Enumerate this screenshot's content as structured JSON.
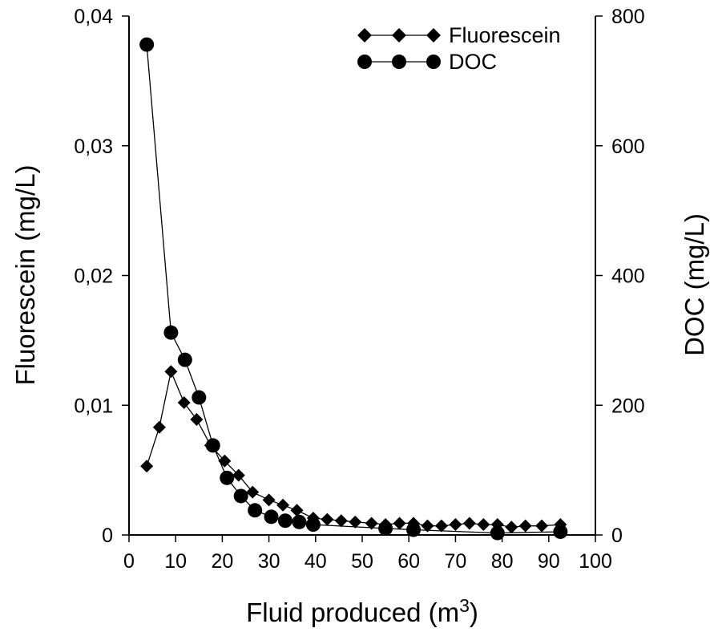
{
  "chart_data": {
    "type": "line",
    "xlabel": "Fluid produced (m",
    "xlabel_sup": "3",
    "xlabel_end": ")",
    "ylabel_left": "Fluorescein (mg/L)",
    "ylabel_right": "DOC (mg/L)",
    "xlim": [
      0,
      100
    ],
    "ylim_left": [
      0,
      0.04
    ],
    "ylim_right": [
      0,
      800
    ],
    "x_ticks": [
      0,
      10,
      20,
      30,
      40,
      50,
      60,
      70,
      80,
      90,
      100
    ],
    "x_tick_labels": [
      "0",
      "10",
      "20",
      "30",
      "40",
      "50",
      "60",
      "70",
      "80",
      "90",
      "100"
    ],
    "y_left_ticks": [
      0,
      0.01,
      0.02,
      0.03,
      0.04
    ],
    "y_left_tick_labels": [
      "0",
      "0,01",
      "0,02",
      "0,03",
      "0,04"
    ],
    "y_right_ticks": [
      0,
      200,
      400,
      600,
      800
    ],
    "y_right_tick_labels": [
      "0",
      "200",
      "400",
      "600",
      "800"
    ],
    "legend_position": "top-right",
    "series": [
      {
        "name": "Fluorescein",
        "axis": "left",
        "marker": "diamond",
        "color": "#000000",
        "x": [
          3.8,
          6.5,
          9.0,
          11.8,
          14.5,
          17.5,
          20.5,
          23.5,
          26.5,
          30.0,
          33.0,
          36.0,
          39.5,
          42.5,
          45.5,
          48.5,
          52.0,
          55.0,
          58.0,
          61.0,
          64.0,
          67.0,
          70.0,
          73.0,
          76.0,
          79.0,
          82.0,
          85.0,
          88.5,
          92.5
        ],
        "values": [
          0.0053,
          0.0083,
          0.0126,
          0.0102,
          0.0089,
          0.0069,
          0.0057,
          0.0046,
          0.0033,
          0.0027,
          0.0023,
          0.0019,
          0.0013,
          0.0012,
          0.0011,
          0.001,
          0.0009,
          0.0008,
          0.0009,
          0.0009,
          0.0007,
          0.0007,
          0.0008,
          0.0009,
          0.0008,
          0.0008,
          0.0006,
          0.0007,
          0.0007,
          0.0008
        ]
      },
      {
        "name": "DOC",
        "axis": "right",
        "marker": "circle",
        "color": "#000000",
        "x": [
          3.8,
          9.0,
          12.0,
          15.0,
          18.0,
          21.0,
          24.0,
          27.0,
          30.5,
          33.5,
          36.5,
          39.5,
          55.0,
          61.0,
          79.0,
          92.5
        ],
        "values": [
          756,
          312,
          270,
          212,
          138,
          88,
          60,
          38,
          28,
          22,
          20,
          16,
          10,
          8,
          3,
          5
        ]
      }
    ]
  }
}
